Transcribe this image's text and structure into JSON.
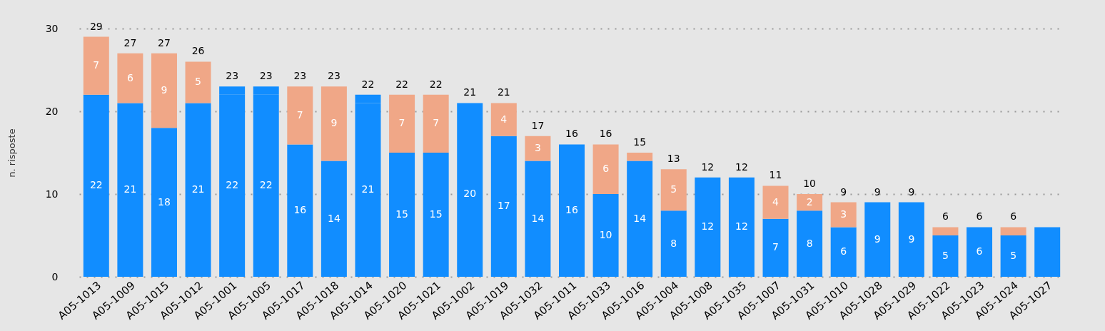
{
  "chart_data": {
    "type": "bar",
    "stacked": true,
    "ylabel": "n. risposte",
    "categories": [
      "A05-1013",
      "A05-1009",
      "A05-1015",
      "A05-1012",
      "A05-1001",
      "A05-1005",
      "A05-1017",
      "A05-1018",
      "A05-1014",
      "A05-1020",
      "A05-1021",
      "A05-1002",
      "A05-1019",
      "A05-1032",
      "A05-1011",
      "A05-1033",
      "A05-1016",
      "A05-1004",
      "A05-1008",
      "A05-1035",
      "A05-1007",
      "A05-1031",
      "A05-1010",
      "A05-1028",
      "A05-1029",
      "A05-1022",
      "A05-1023",
      "A05-1024",
      "A05-1027"
    ],
    "series": [
      {
        "color": "#118dff",
        "values": [
          22,
          21,
          18,
          21,
          22,
          22,
          16,
          14,
          21,
          15,
          15,
          20,
          17,
          14,
          16,
          10,
          14,
          8,
          12,
          12,
          7,
          8,
          6,
          9,
          9,
          5,
          6,
          5,
          6
        ],
        "value_labels": [
          "22",
          "21",
          "18",
          "21",
          "22",
          "22",
          "16",
          "14",
          "21",
          "15",
          "15",
          "20",
          "17",
          "14",
          "16",
          "10",
          "14",
          "8",
          "12",
          "12",
          "7",
          "8",
          "6",
          "9",
          "9",
          "5",
          "6",
          "5",
          null
        ]
      },
      {
        "color": "#118dff",
        "values": [
          null,
          null,
          null,
          null,
          1,
          1,
          null,
          null,
          1,
          null,
          null,
          1,
          null,
          null,
          null,
          null,
          null,
          null,
          null,
          null,
          null,
          null,
          null,
          null,
          null,
          null,
          null,
          null,
          null
        ]
      },
      {
        "color": "#f0a787",
        "values": [
          7,
          6,
          9,
          5,
          null,
          null,
          7,
          9,
          null,
          7,
          7,
          null,
          4,
          3,
          null,
          6,
          1,
          5,
          null,
          null,
          4,
          2,
          3,
          null,
          null,
          1,
          null,
          1,
          null
        ],
        "value_labels": [
          "7",
          "6",
          "9",
          "5",
          null,
          null,
          "7",
          "9",
          null,
          "7",
          "7",
          null,
          "4",
          "3",
          null,
          "6",
          null,
          "5",
          null,
          null,
          "4",
          "2",
          "3",
          null,
          null,
          null,
          null,
          null,
          null
        ]
      }
    ],
    "totals": [
      "29",
      "27",
      "27",
      "26",
      "23",
      "23",
      "23",
      "23",
      "22",
      "22",
      "22",
      "21",
      "21",
      "17",
      "16",
      "16",
      "15",
      "13",
      "12",
      "12",
      "11",
      "10",
      "9",
      "9",
      "9",
      "6",
      "6",
      "6",
      null
    ],
    "ylim": [
      0,
      30
    ],
    "yticks": [
      0,
      10,
      20,
      30
    ],
    "grid": "y"
  }
}
